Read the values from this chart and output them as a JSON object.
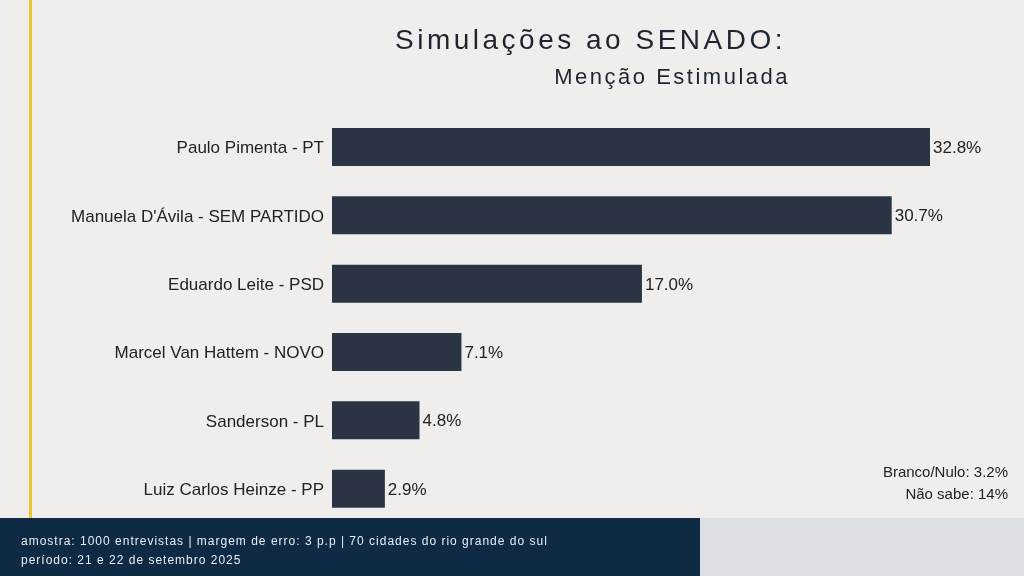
{
  "chart_data": {
    "type": "bar",
    "orientation": "horizontal",
    "title": "Simulações ao SENADO:",
    "subtitle": "Menção Estimulada",
    "categories": [
      "Paulo Pimenta - PT",
      "Manuela D'Ávila - SEM PARTIDO",
      "Eduardo Leite - PSD",
      "Marcel Van Hattem - NOVO",
      "Sanderson - PL",
      "Luiz Carlos Heinze - PP"
    ],
    "values": [
      32.8,
      30.7,
      17.0,
      7.1,
      4.8,
      2.9
    ],
    "value_labels": [
      "32.8%",
      "30.7%",
      "17.0%",
      "7.1%",
      "4.8%",
      "2.9%"
    ],
    "color": "#2b3442",
    "grid": false,
    "legend": false,
    "annotations": [
      "Branco/Nulo: 3.2%",
      "Não sabe: 14%",
      "amostra: 1000 entrevistas | margem de erro: 3 p.p | 70 cidades do rio grande do sul",
      "período: 21 e 22 de setembro 2025"
    ]
  }
}
